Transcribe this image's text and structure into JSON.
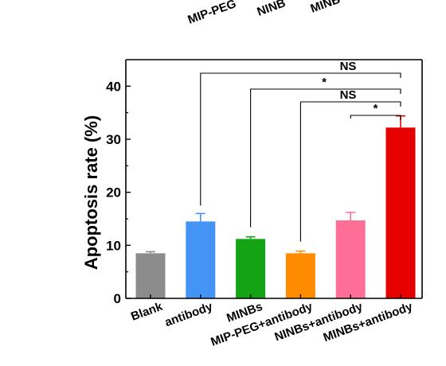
{
  "chart_data": {
    "type": "bar",
    "ylabel": "Apoptosis rate (%)",
    "xlabel": "",
    "ylim": [
      0,
      45
    ],
    "yticks": [
      0,
      10,
      20,
      30,
      40
    ],
    "categories": [
      "Blank",
      "antibody",
      "MINBs",
      "MIP-PEG+antibody",
      "NINBs+antibody",
      "MINBs+antibody"
    ],
    "values": [
      8.5,
      14.5,
      11.2,
      8.5,
      14.7,
      32.2
    ],
    "errors": [
      0.3,
      1.5,
      0.4,
      0.4,
      1.5,
      2.2
    ],
    "colors": [
      "#8c8c8c",
      "#4394f5",
      "#14a314",
      "#ff8c00",
      "#ff6e96",
      "#e60000"
    ],
    "top_fragment_labels": [
      "MIP-PEG",
      "NINB",
      "MINB"
    ],
    "significance": [
      {
        "from": 1,
        "to": 5,
        "label": "NS"
      },
      {
        "from": 2,
        "to": 5,
        "label": "*"
      },
      {
        "from": 3,
        "to": 5,
        "label": "NS"
      },
      {
        "from": 4,
        "to": 5,
        "label": "*"
      }
    ]
  }
}
